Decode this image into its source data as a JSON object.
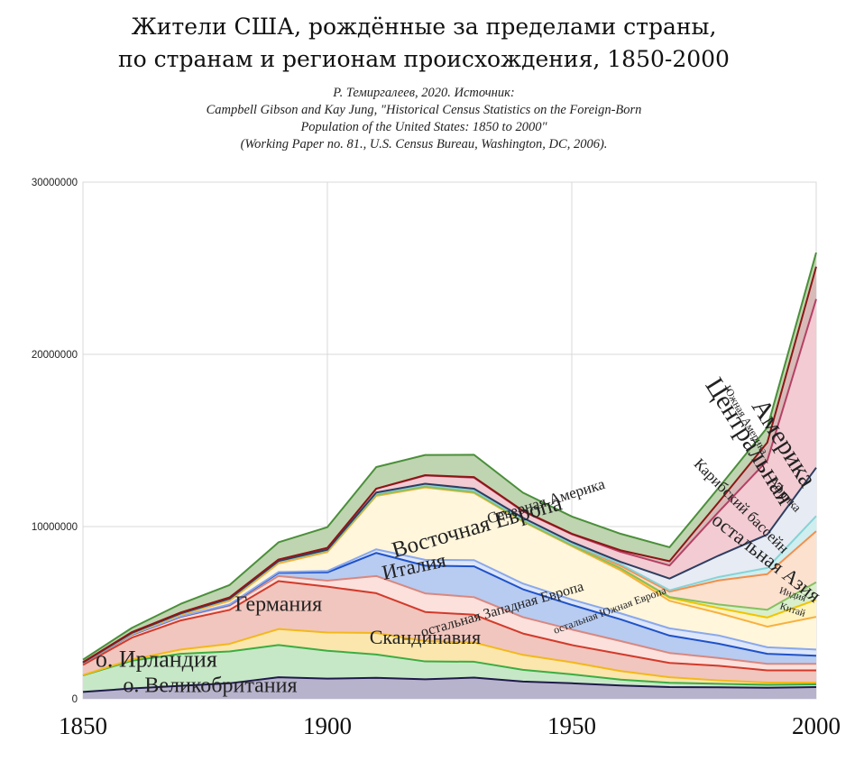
{
  "title_lines": [
    "Жители США, рождённые за пределами страны,",
    "по странам и регионам происхождения, 1850-2000"
  ],
  "subtitle_lines": [
    "Р. Темиргалеев, 2020. Источник:",
    "Campbell Gibson and Kay Jung, \"Historical Census Statistics on the Foreign-Born",
    "Population of the United States: 1850 to 2000\"",
    "(Working Paper no. 81., U.S. Census Bureau, Washington, DC, 2006)."
  ],
  "chart_data": {
    "type": "area",
    "stacked": true,
    "x": [
      1850,
      1860,
      1870,
      1880,
      1890,
      1900,
      1910,
      1920,
      1930,
      1940,
      1950,
      1960,
      1970,
      1980,
      1990,
      2000
    ],
    "xticks": [
      1850,
      1900,
      1950,
      2000
    ],
    "yticks": [
      0,
      10000000,
      20000000,
      30000000
    ],
    "ytick_labels": [
      "0",
      "10000000",
      "20000000",
      "30000000"
    ],
    "ylim": [
      0,
      30000000
    ],
    "xlim": [
      1850,
      2000
    ],
    "grid": true,
    "series": [
      {
        "name": "о. Великобритания",
        "fill": "#b8b3cc",
        "line": "#1e1a4a",
        "values": [
          400000,
          600000,
          750000,
          900000,
          1250000,
          1170000,
          1220000,
          1130000,
          1230000,
          1000000,
          900000,
          770000,
          680000,
          670000,
          640000,
          680000
        ]
      },
      {
        "name": "о. Ирландия",
        "fill": "#c7e8c6",
        "line": "#3cac44",
        "values": [
          960000,
          1610000,
          1860000,
          1850000,
          1870000,
          1620000,
          1350000,
          1040000,
          920000,
          680000,
          520000,
          340000,
          250000,
          200000,
          170000,
          160000
        ]
      },
      {
        "name": "Скандинавия",
        "fill": "#fbe6ad",
        "line": "#f2b81c",
        "values": [
          20000,
          70000,
          250000,
          440000,
          930000,
          1060000,
          1250000,
          1180000,
          1120000,
          870000,
          700000,
          500000,
          320000,
          200000,
          130000,
          100000
        ]
      },
      {
        "name": "Германия",
        "fill": "#f1c6be",
        "line": "#d23a2a",
        "values": [
          580000,
          1270000,
          1690000,
          1970000,
          2780000,
          2660000,
          2310000,
          1690000,
          1610000,
          1240000,
          1000000,
          990000,
          830000,
          850000,
          710000,
          710000
        ]
      },
      {
        "name": "остальная Западная Европа",
        "fill": "#fbe0dc",
        "line": "#d88880",
        "values": [
          100000,
          160000,
          200000,
          250000,
          300000,
          350000,
          1000000,
          1080000,
          1020000,
          950000,
          900000,
          750000,
          580000,
          450000,
          380000,
          380000
        ]
      },
      {
        "name": "Италия",
        "fill": "#b8cbf0",
        "line": "#1e52c8",
        "values": [
          5000,
          12000,
          17000,
          44000,
          180000,
          480000,
          1340000,
          1610000,
          1790000,
          1620000,
          1430000,
          1260000,
          1010000,
          830000,
          580000,
          470000
        ]
      },
      {
        "name": "остальная Южная Европа",
        "fill": "#dde6fa",
        "line": "#8aa8ec",
        "values": [
          10000,
          15000,
          20000,
          30000,
          50000,
          80000,
          210000,
          340000,
          360000,
          330000,
          310000,
          350000,
          420000,
          480000,
          380000,
          360000
        ]
      },
      {
        "name": "Восточная Европа",
        "fill": "#fff6dc",
        "line": "#f7b040",
        "values": [
          10000,
          30000,
          80000,
          200000,
          500000,
          1100000,
          3100000,
          4200000,
          3900000,
          3600000,
          3100000,
          2500000,
          1600000,
          1300000,
          1200000,
          1900000
        ]
      },
      {
        "name": "Китай",
        "fill": "#fff3c0",
        "line": "#f2c400",
        "values": [
          0,
          35000,
          60000,
          100000,
          100000,
          80000,
          60000,
          40000,
          45000,
          35000,
          50000,
          100000,
          170000,
          290000,
          530000,
          990000
        ]
      },
      {
        "name": "Индия",
        "fill": "#d9efcb",
        "line": "#86c060",
        "values": [
          0,
          0,
          0,
          0,
          0,
          0,
          5000,
          5000,
          5000,
          5000,
          5000,
          20000,
          50000,
          210000,
          450000,
          1020000
        ]
      },
      {
        "name": "остальная Азия",
        "fill": "#fde1cf",
        "line": "#f38f4c",
        "values": [
          0,
          1000,
          5000,
          10000,
          10000,
          30000,
          80000,
          100000,
          100000,
          100000,
          100000,
          140000,
          310000,
          1390000,
          2070000,
          2960000
        ]
      },
      {
        "name": "Африка",
        "fill": "#cfeef0",
        "line": "#86d3d6",
        "values": [
          0,
          0,
          0,
          0,
          0,
          0,
          0,
          0,
          0,
          0,
          0,
          100000,
          80000,
          200000,
          360000,
          880000
        ]
      },
      {
        "name": "Карибский бассейн",
        "fill": "#e7ebf3",
        "line": "#2d3e60",
        "values": [
          15000,
          20000,
          25000,
          20000,
          30000,
          30000,
          50000,
          70000,
          100000,
          80000,
          90000,
          130000,
          680000,
          1240000,
          1940000,
          2810000
        ]
      },
      {
        "name": "Центральная Америка",
        "fill": "#f2cbd3",
        "line": "#b54065",
        "values": [
          20000,
          40000,
          50000,
          70000,
          80000,
          100000,
          220000,
          480000,
          640000,
          380000,
          450000,
          580000,
          760000,
          2530000,
          4300000,
          9790000
        ]
      },
      {
        "name": "Южная Америка",
        "fill": "#d8bab8",
        "line": "#8c1616",
        "values": [
          1000,
          3000,
          4000,
          5000,
          5000,
          5000,
          9000,
          20000,
          30000,
          30000,
          30000,
          90000,
          250000,
          560000,
          1040000,
          1880000
        ]
      },
      {
        "name": "Северная Америка",
        "fill": "#bfd4b0",
        "line": "#4a8f3a",
        "values": [
          150000,
          250000,
          500000,
          720000,
          1000000,
          1200000,
          1250000,
          1170000,
          1300000,
          1050000,
          1000000,
          960000,
          810000,
          840000,
          870000,
          820000
        ]
      }
    ],
    "area_labels": [
      {
        "text": "о. Великобритания",
        "size": 24,
        "rot": 0,
        "x": 1876,
        "y": 400000
      },
      {
        "text": "о. Ирландия",
        "size": 26,
        "rot": 0,
        "x": 1865,
        "y": 1850000
      },
      {
        "text": "Скандинавия",
        "size": 22,
        "rot": 0,
        "x": 1920,
        "y": 3200000
      },
      {
        "text": "Германия",
        "size": 24,
        "rot": 0,
        "x": 1890,
        "y": 5100000
      },
      {
        "text": "остальная Западная Европа",
        "size": 16,
        "rot": 16,
        "x": 1936,
        "y": 4950000
      },
      {
        "text": "Италия",
        "size": 23,
        "rot": 12,
        "x": 1918,
        "y": 7300000
      },
      {
        "text": "остальная Южная Европа",
        "size": 12,
        "rot": 20,
        "x": 1958,
        "y": 4950000
      },
      {
        "text": "Восточная Европа",
        "size": 25,
        "rot": 16,
        "x": 1931,
        "y": 9600000
      },
      {
        "text": "Китай",
        "size": 11,
        "rot": -18,
        "x": 1995,
        "y": 5000000
      },
      {
        "text": "Индия",
        "size": 11,
        "rot": -18,
        "x": 1995,
        "y": 5900000
      },
      {
        "text": "остальная Азия",
        "size": 22,
        "rot": -38,
        "x": 1989,
        "y": 7900000
      },
      {
        "text": "Африка",
        "size": 14,
        "rot": -48,
        "x": 1993,
        "y": 11700000
      },
      {
        "text": "Карибский бассейн",
        "size": 17,
        "rot": -45,
        "x": 1984,
        "y": 11000000
      },
      {
        "text": "Центральная",
        "size": 29,
        "rot": -58,
        "x": 1985,
        "y": 14700000
      },
      {
        "text": "Америка",
        "size": 29,
        "rot": -58,
        "x": 1992,
        "y": 14600000
      },
      {
        "text": "Южная Америка",
        "size": 12,
        "rot": -60,
        "x": 1985,
        "y": 16100000
      },
      {
        "text": "Северная Америка",
        "size": 17,
        "rot": 17,
        "x": 1945,
        "y": 11200000
      }
    ]
  }
}
